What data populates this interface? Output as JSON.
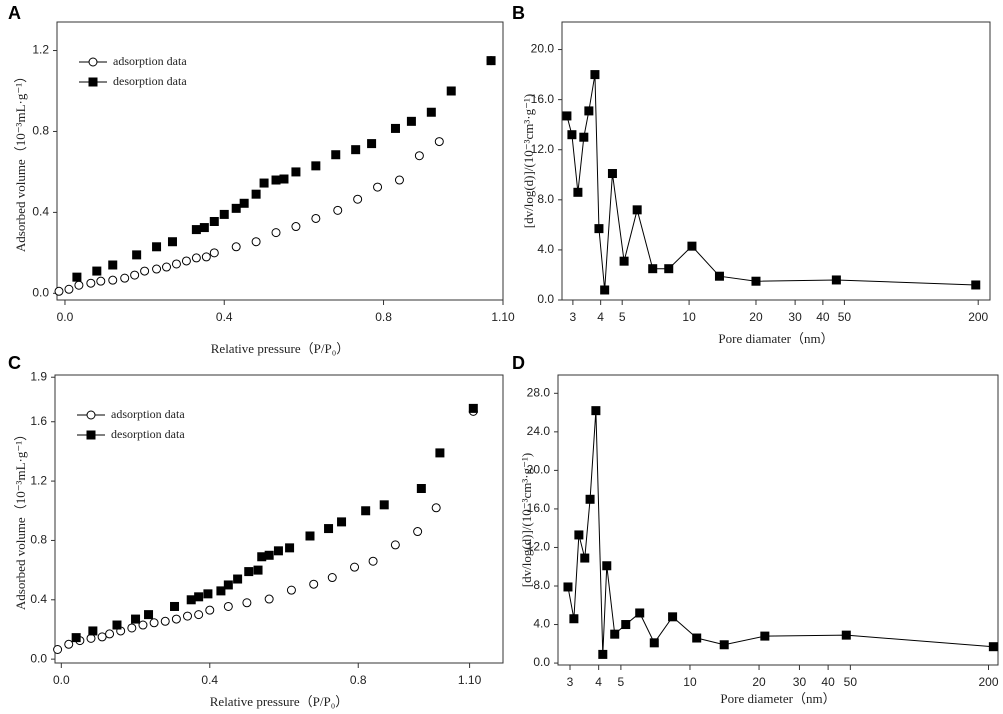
{
  "chart_data": [
    {
      "type": "scatter",
      "panel": "A",
      "xlabel": "Relative pressure（P/P₀）",
      "ylabel": "Adsorbed volume（10⁻³mL·g⁻¹）",
      "xlim": [
        -0.02,
        1.1
      ],
      "ylim": [
        -0.033,
        1.341
      ],
      "xticks": [
        {
          "value": 0,
          "label": "0.0"
        },
        0.4,
        0.8,
        {
          "value": 1.1,
          "label": "1.10"
        }
      ],
      "yticks": [
        {
          "value": 0,
          "label": "0.0"
        },
        0.4,
        0.8,
        1.2
      ],
      "legend": "upper left",
      "series": [
        {
          "name": "adsorption data",
          "marker": "circle",
          "color": "#000000",
          "x": [
            -0.015,
            0.01,
            0.035,
            0.065,
            0.09,
            0.12,
            0.15,
            0.175,
            0.2,
            0.23,
            0.255,
            0.28,
            0.305,
            0.33,
            0.355,
            0.375,
            0.43,
            0.48,
            0.53,
            0.58,
            0.63,
            0.685,
            0.735,
            0.785,
            0.84,
            0.89,
            0.94,
            1.07
          ],
          "values": [
            0.01,
            0.02,
            0.04,
            0.05,
            0.06,
            0.065,
            0.075,
            0.09,
            0.11,
            0.12,
            0.13,
            0.145,
            0.16,
            0.175,
            0.18,
            0.2,
            0.23,
            0.255,
            0.3,
            0.33,
            0.37,
            0.41,
            0.465,
            0.525,
            0.56,
            0.68,
            0.75,
            1.15
          ]
        },
        {
          "name": "desorption data",
          "marker": "square",
          "color": "#000000",
          "x": [
            0.03,
            0.08,
            0.12,
            0.18,
            0.23,
            0.27,
            0.33,
            0.35,
            0.375,
            0.4,
            0.43,
            0.45,
            0.48,
            0.5,
            0.53,
            0.55,
            0.58,
            0.63,
            0.68,
            0.73,
            0.77,
            0.83,
            0.87,
            0.92,
            0.97,
            1.07
          ],
          "values": [
            0.08,
            0.11,
            0.14,
            0.19,
            0.23,
            0.255,
            0.315,
            0.325,
            0.355,
            0.39,
            0.42,
            0.445,
            0.49,
            0.545,
            0.56,
            0.565,
            0.6,
            0.63,
            0.685,
            0.71,
            0.74,
            0.815,
            0.85,
            0.895,
            1.0,
            1.15
          ]
        }
      ]
    },
    {
      "type": "line",
      "panel": "B",
      "xlabel": "Pore diamater（nm）",
      "ylabel": "[dv/log(d)]/(10⁻³cm³·g⁻¹)",
      "xscale": "log",
      "xlim": [
        2.68,
        226
      ],
      "ylim": [
        0,
        22.2
      ],
      "xticks": [
        3,
        4,
        5,
        10,
        20,
        30,
        40,
        50,
        200
      ],
      "yticks": [
        {
          "value": 0,
          "label": "0.0"
        },
        {
          "value": 4,
          "label": "4.0"
        },
        {
          "value": 8,
          "label": "8.0"
        },
        {
          "value": 12,
          "label": "12.0"
        },
        {
          "value": 16,
          "label": "16.0"
        },
        {
          "value": 20,
          "label": "20.0"
        }
      ],
      "series": [
        {
          "marker": "square",
          "color": "#000000",
          "x": [
            2.82,
            2.97,
            3.16,
            3.36,
            3.54,
            3.77,
            3.93,
            4.17,
            4.52,
            5.1,
            5.84,
            6.86,
            8.1,
            10.3,
            13.7,
            20,
            46,
            195
          ],
          "values": [
            14.7,
            13.2,
            8.6,
            13.0,
            15.1,
            18.0,
            5.7,
            0.8,
            10.1,
            3.1,
            7.2,
            2.5,
            2.5,
            4.3,
            1.9,
            1.5,
            1.6,
            1.2
          ]
        }
      ]
    },
    {
      "type": "scatter",
      "panel": "C",
      "xlabel": "Relative pressure（P/P₀）",
      "ylabel": "Adsorbed volume（10⁻³mL·g⁻¹）",
      "xlim": [
        -0.017,
        1.19
      ],
      "ylim": [
        -0.026,
        1.915
      ],
      "xticks": [
        {
          "value": 0,
          "label": "0.0"
        },
        0.4,
        0.8,
        {
          "value": 1.1,
          "label": "1.10"
        }
      ],
      "yticks": [
        {
          "value": 0,
          "label": "0.0"
        },
        0.4,
        0.8,
        1.2,
        1.6,
        1.9
      ],
      "legend": "upper left",
      "series": [
        {
          "name": "adsorption data",
          "marker": "circle",
          "color": "#000000",
          "x": [
            -0.01,
            0.02,
            0.05,
            0.08,
            0.11,
            0.13,
            0.16,
            0.19,
            0.22,
            0.25,
            0.28,
            0.31,
            0.34,
            0.37,
            0.4,
            0.45,
            0.5,
            0.56,
            0.62,
            0.68,
            0.73,
            0.79,
            0.84,
            0.9,
            0.96,
            1.01,
            1.11
          ],
          "values": [
            0.065,
            0.1,
            0.125,
            0.14,
            0.15,
            0.17,
            0.19,
            0.21,
            0.23,
            0.245,
            0.255,
            0.27,
            0.29,
            0.3,
            0.33,
            0.355,
            0.38,
            0.405,
            0.465,
            0.505,
            0.55,
            0.62,
            0.66,
            0.77,
            0.86,
            1.02,
            1.67
          ]
        },
        {
          "name": "desorption data",
          "marker": "square",
          "color": "#000000",
          "x": [
            0.04,
            0.085,
            0.15,
            0.2,
            0.235,
            0.305,
            0.35,
            0.37,
            0.395,
            0.43,
            0.45,
            0.475,
            0.505,
            0.53,
            0.54,
            0.56,
            0.585,
            0.615,
            0.67,
            0.72,
            0.755,
            0.82,
            0.87,
            0.97,
            1.02,
            1.11
          ],
          "values": [
            0.145,
            0.19,
            0.23,
            0.27,
            0.3,
            0.355,
            0.4,
            0.42,
            0.44,
            0.46,
            0.5,
            0.54,
            0.59,
            0.6,
            0.69,
            0.7,
            0.73,
            0.75,
            0.83,
            0.88,
            0.925,
            1.0,
            1.04,
            1.15,
            1.39,
            1.69
          ]
        }
      ]
    },
    {
      "type": "line",
      "panel": "D",
      "xlabel": "Pore diameter（nm）",
      "ylabel": "[dv/log(d)]/(10⁻³cm³·g⁻¹)",
      "xscale": "log",
      "xlim": [
        2.66,
        220
      ],
      "ylim": [
        -0.2,
        29.9
      ],
      "xticks": [
        3,
        4,
        5,
        10,
        20,
        30,
        40,
        50,
        200
      ],
      "yticks": [
        {
          "value": 0,
          "label": "0.0"
        },
        {
          "value": 4,
          "label": "4.0"
        },
        {
          "value": 8,
          "label": "8.0"
        },
        {
          "value": 12,
          "label": "12.0"
        },
        {
          "value": 16,
          "label": "16.0"
        },
        {
          "value": 20,
          "label": "20.0"
        },
        {
          "value": 24,
          "label": "24.0"
        },
        {
          "value": 28,
          "label": "28.0"
        }
      ],
      "series": [
        {
          "marker": "square",
          "color": "#000000",
          "x": [
            2.94,
            3.12,
            3.28,
            3.48,
            3.67,
            3.89,
            4.17,
            4.34,
            4.7,
            5.25,
            6.04,
            6.99,
            8.4,
            10.7,
            14.1,
            21.2,
            48,
            210
          ],
          "values": [
            7.9,
            4.6,
            13.3,
            10.9,
            17.0,
            26.2,
            0.9,
            10.1,
            3.0,
            4.0,
            5.2,
            2.1,
            4.8,
            2.6,
            1.9,
            2.8,
            2.9,
            1.7
          ]
        }
      ]
    }
  ]
}
